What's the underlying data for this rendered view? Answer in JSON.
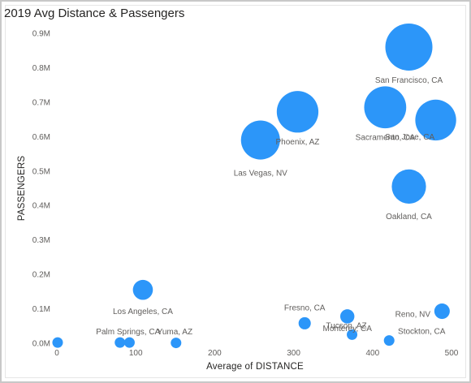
{
  "chart_data": {
    "type": "scatter",
    "title": "2019 Avg Distance & Passengers",
    "xlabel": "Average of DISTANCE",
    "ylabel": "PASSENGERS",
    "xlim": [
      0,
      500
    ],
    "ylim": [
      0,
      900000
    ],
    "x_ticks": [
      "0",
      "100",
      "200",
      "300",
      "400",
      "500"
    ],
    "y_ticks": [
      "0.0M",
      "0.1M",
      "0.2M",
      "0.3M",
      "0.4M",
      "0.5M",
      "0.6M",
      "0.7M",
      "0.8M",
      "0.9M"
    ],
    "grid": false,
    "bubble_color": "#2c96f9",
    "points": [
      {
        "label": "San Francisco, CA",
        "x": 446,
        "y": 860000
      },
      {
        "label": "Sacramento, CA",
        "x": 416,
        "y": 685000
      },
      {
        "label": "San Jose, CA",
        "x": 480,
        "y": 648000
      },
      {
        "label": "Phoenix, AZ",
        "x": 305,
        "y": 672000
      },
      {
        "label": "Las Vegas, NV",
        "x": 258,
        "y": 590000
      },
      {
        "label": "Oakland, CA",
        "x": 446,
        "y": 455000
      },
      {
        "label": "Los Angeles, CA",
        "x": 109,
        "y": 155000
      },
      {
        "label": "Reno, NV",
        "x": 488,
        "y": 93000
      },
      {
        "label": "Fresno, CA",
        "x": 314,
        "y": 58000
      },
      {
        "label": "Monterey, CA",
        "x": 368,
        "y": 78000
      },
      {
        "label": "Tucson, AZ",
        "x": 374,
        "y": 25000
      },
      {
        "label": "Stockton, CA",
        "x": 421,
        "y": 8000
      },
      {
        "label": "Palm Springs, CA",
        "x": 80,
        "y": 2000
      },
      {
        "label": "Yuma, AZ",
        "x": 92,
        "y": 2000
      },
      {
        "label": "",
        "x": 1,
        "y": 2000
      },
      {
        "label": "",
        "x": 151,
        "y": 1000
      }
    ]
  }
}
